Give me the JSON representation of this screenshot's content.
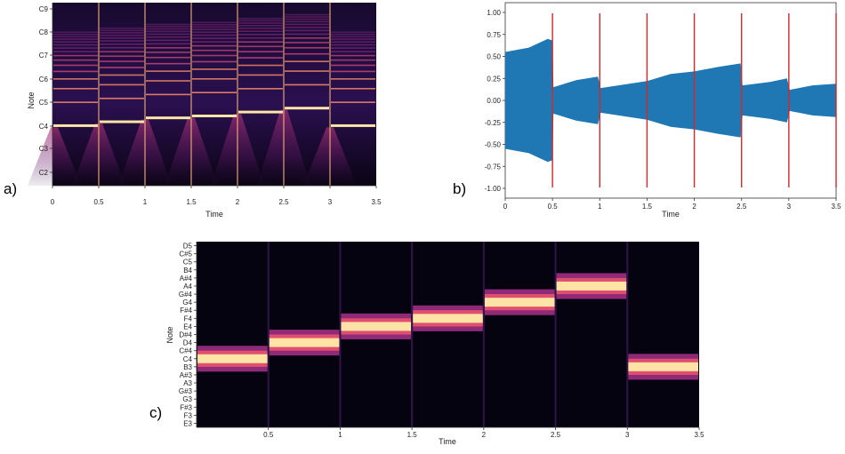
{
  "panels": {
    "a": "a)",
    "b": "b)",
    "c": "c)"
  },
  "chart_data": [
    {
      "id": "a",
      "type": "heatmap",
      "xlabel": "Time",
      "ylabel": "Note",
      "xlim": [
        0,
        3.5
      ],
      "x_ticks": [
        "0",
        "0.5",
        "1",
        "1.5",
        "2",
        "2.5",
        "3",
        "3.5"
      ],
      "y_ticks": [
        "C2",
        "C3",
        "C4",
        "C5",
        "C6",
        "C7",
        "C8",
        "C9"
      ],
      "colormap": "magma",
      "segments": [
        {
          "start": 0,
          "end": 0.5,
          "note": "C4"
        },
        {
          "start": 0.5,
          "end": 1.0,
          "note": "D4"
        },
        {
          "start": 1.0,
          "end": 1.5,
          "note": "E4"
        },
        {
          "start": 1.5,
          "end": 2.0,
          "note": "F4"
        },
        {
          "start": 2.0,
          "end": 2.5,
          "note": "G4"
        },
        {
          "start": 2.5,
          "end": 3.0,
          "note": "A4"
        },
        {
          "start": 3.0,
          "end": 3.5,
          "note": "C4"
        }
      ]
    },
    {
      "id": "b",
      "type": "line",
      "xlabel": "Time",
      "ylabel": "",
      "xlim": [
        0,
        3.5
      ],
      "ylim": [
        -1.0,
        1.0
      ],
      "x_ticks": [
        "0",
        "0.5",
        "1",
        "1.5",
        "2",
        "2.5",
        "3",
        "3.5"
      ],
      "y_ticks": [
        "1.00",
        "0.75",
        "0.50",
        "0.25",
        "0.00",
        "-0.25",
        "-0.50",
        "-0.75",
        "-1.00"
      ],
      "waveform_color": "#1f77b4",
      "onset_color": "#d62728",
      "onsets": [
        0.5,
        1.0,
        1.5,
        2.0,
        2.5,
        3.0,
        3.5
      ],
      "envelope": [
        {
          "x": 0.0,
          "amp": 0.55
        },
        {
          "x": 0.25,
          "amp": 0.6
        },
        {
          "x": 0.45,
          "amp": 0.7
        },
        {
          "x": 0.5,
          "amp": 0.68
        },
        {
          "x": 0.51,
          "amp": 0.15
        },
        {
          "x": 0.75,
          "amp": 0.23
        },
        {
          "x": 0.98,
          "amp": 0.27
        },
        {
          "x": 1.01,
          "amp": 0.14
        },
        {
          "x": 1.5,
          "amp": 0.22
        },
        {
          "x": 1.75,
          "amp": 0.3
        },
        {
          "x": 2.0,
          "amp": 0.33
        },
        {
          "x": 2.25,
          "amp": 0.38
        },
        {
          "x": 2.49,
          "amp": 0.42
        },
        {
          "x": 2.51,
          "amp": 0.17
        },
        {
          "x": 2.8,
          "amp": 0.21
        },
        {
          "x": 2.98,
          "amp": 0.25
        },
        {
          "x": 3.01,
          "amp": 0.12
        },
        {
          "x": 3.25,
          "amp": 0.17
        },
        {
          "x": 3.5,
          "amp": 0.19
        }
      ]
    },
    {
      "id": "c",
      "type": "heatmap",
      "xlabel": "Time",
      "ylabel": "Note",
      "xlim": [
        0,
        3.5
      ],
      "x_ticks": [
        "0.5",
        "1",
        "1.5",
        "2",
        "2.5",
        "3",
        "3.5"
      ],
      "y_ticks": [
        "D5",
        "C#5",
        "C5",
        "B4",
        "A#4",
        "A4",
        "G#4",
        "G4",
        "F#4",
        "F4",
        "E4",
        "D#4",
        "D4",
        "C#4",
        "C4",
        "B3",
        "A#3",
        "A3",
        "G#3",
        "G3",
        "F#3",
        "F3",
        "E3"
      ],
      "colormap": "magma",
      "segments": [
        {
          "start": 0,
          "end": 0.5,
          "note": "C4"
        },
        {
          "start": 0.5,
          "end": 1.0,
          "note": "D4"
        },
        {
          "start": 1.0,
          "end": 1.5,
          "note": "E4"
        },
        {
          "start": 1.5,
          "end": 2.0,
          "note": "F4"
        },
        {
          "start": 2.0,
          "end": 2.5,
          "note": "G4"
        },
        {
          "start": 2.5,
          "end": 3.0,
          "note": "A4"
        },
        {
          "start": 3.0,
          "end": 3.5,
          "note": "B3"
        }
      ]
    }
  ]
}
